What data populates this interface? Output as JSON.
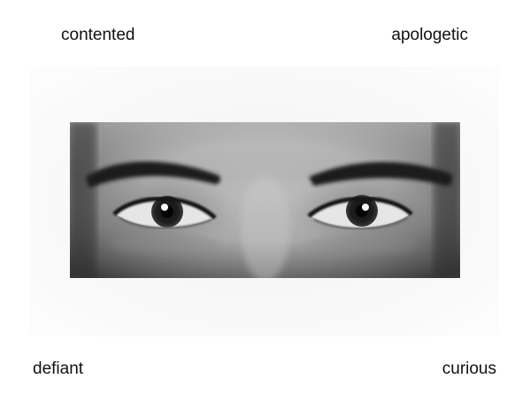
{
  "labels": {
    "top_left": "contented",
    "top_right": "apologetic",
    "bottom_left": "defiant",
    "bottom_right": "curious"
  },
  "photo": {
    "subject": "eyes-region-photograph",
    "style": "grayscale"
  }
}
